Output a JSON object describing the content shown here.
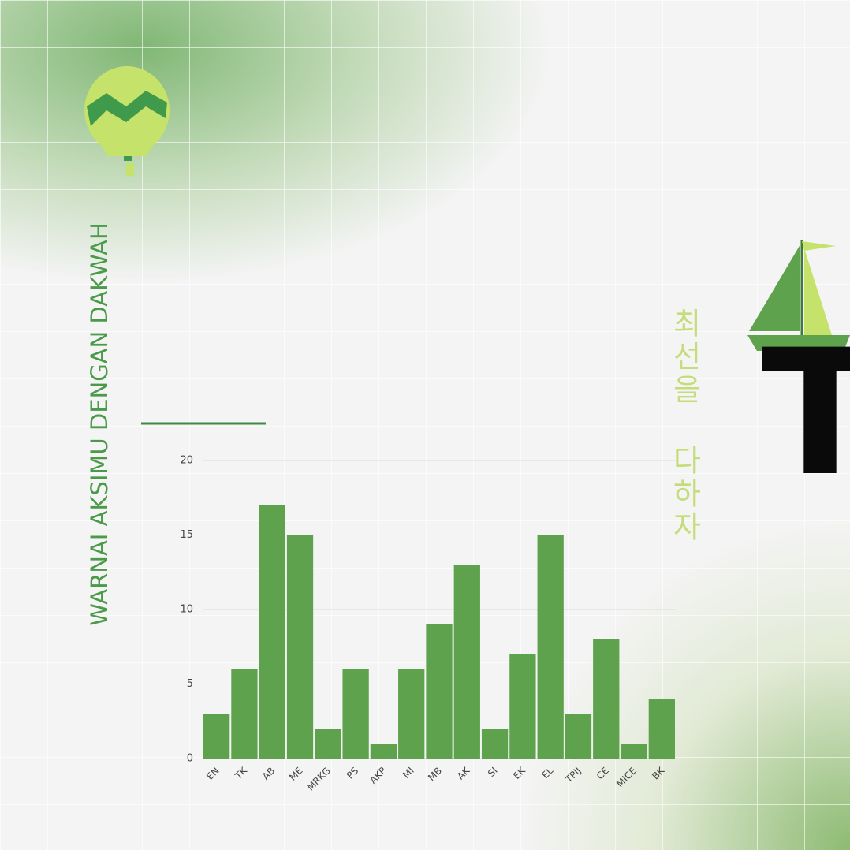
{
  "chart_data": {
    "type": "bar",
    "title": "WARNAI AKSIMU DENGAN DAKWAH",
    "subtitle": "최선을 다하자",
    "annotations": [
      "T"
    ],
    "categories": [
      "EN",
      "TK",
      "AB",
      "ME",
      "MRKG",
      "PS",
      "AKP",
      "MI",
      "MB",
      "AK",
      "SI",
      "EK",
      "EL",
      "TPIJ",
      "CE",
      "MICE",
      "BK"
    ],
    "values": [
      3,
      6,
      17,
      15,
      2,
      6,
      1,
      6,
      9,
      13,
      2,
      7,
      15,
      3,
      8,
      1,
      4
    ],
    "color": "#5ea24e",
    "ylim": [
      0,
      20
    ],
    "yticks": [
      0,
      5,
      10,
      15,
      20
    ],
    "grid": true
  }
}
